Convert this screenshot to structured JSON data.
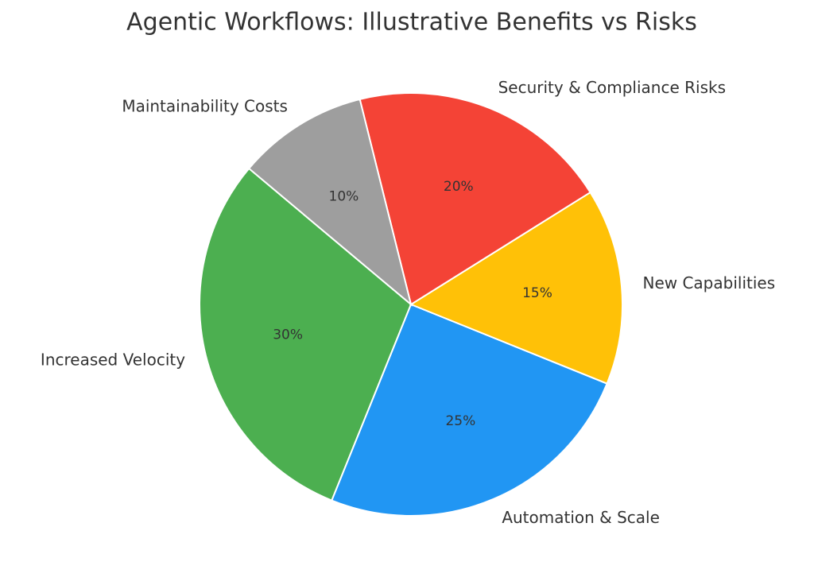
{
  "chart_data": {
    "type": "pie",
    "title": "Agentic Workflows: Illustrative Benefits vs Risks",
    "categories": [
      "Increased Velocity",
      "Automation & Scale",
      "New Capabilities",
      "Security & Compliance Risks",
      "Maintainability Costs"
    ],
    "values": [
      30,
      25,
      15,
      20,
      10
    ],
    "value_labels": [
      "30%",
      "25%",
      "15%",
      "20%",
      "10%"
    ],
    "colors": [
      "#4caf50",
      "#2196f3",
      "#ffc107",
      "#f44336",
      "#9e9e9e"
    ],
    "startangle": 140
  }
}
